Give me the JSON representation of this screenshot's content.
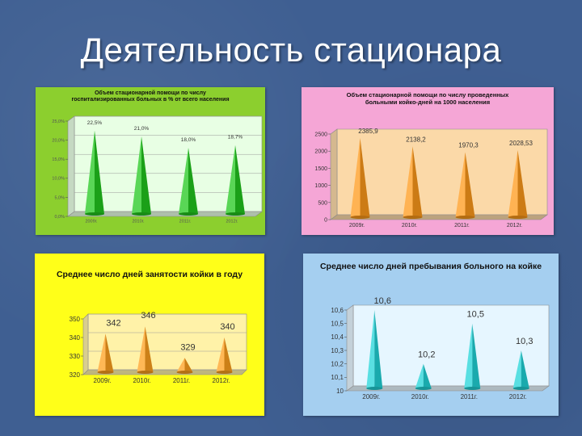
{
  "slide": {
    "title": "Деятельность стационара"
  },
  "chart_data": [
    {
      "type": "bar",
      "title": "Объем стационарной помощи по числу госпитализированных больных в % от всего населения",
      "categories": [
        "2009г.",
        "2010г.",
        "2011г.",
        "2012г."
      ],
      "values": [
        22.5,
        21.0,
        18.0,
        18.7
      ],
      "data_labels": [
        "22,5%",
        "21,0%",
        "18,0%",
        "18,7%"
      ],
      "yticks": [
        "0,0%",
        "5,0%",
        "10,0%",
        "15,0%",
        "20,0%",
        "25,0%"
      ],
      "ylim": [
        0,
        25
      ],
      "grid": true,
      "colors": {
        "background": "#8ccf2e",
        "plot": "#e8ffe4",
        "mark": "#22c81e"
      }
    },
    {
      "type": "bar",
      "title": "Объем стационарной помощи по числу проведенных больными койко-дней на 1000 населения",
      "categories": [
        "2009г.",
        "2010г.",
        "2011г.",
        "2012г."
      ],
      "values": [
        2385.9,
        2138.2,
        1970.3,
        2028.53
      ],
      "data_labels": [
        "2385,9",
        "2138,2",
        "1970,3",
        "2028,53"
      ],
      "yticks": [
        "0",
        "500",
        "1000",
        "1500",
        "2000",
        "2500"
      ],
      "ylim": [
        0,
        2500
      ],
      "grid": false,
      "colors": {
        "background": "#f5a6d6",
        "plot": "#fbd9a8",
        "mark": "#ff9a1a"
      }
    },
    {
      "type": "bar",
      "title": "Среднее число дней занятости койки в году",
      "categories": [
        "2009г.",
        "2010г.",
        "2011г.",
        "2012г."
      ],
      "values": [
        342,
        346,
        329,
        340
      ],
      "data_labels": [
        "342",
        "346",
        "329",
        "340"
      ],
      "yticks": [
        "320",
        "330",
        "340",
        "350"
      ],
      "ylim": [
        320,
        350
      ],
      "grid": true,
      "colors": {
        "background": "#ffff19",
        "plot": "#fff2a8",
        "mark": "#ffa01e"
      }
    },
    {
      "type": "bar",
      "title": "Среднее число дней пребывания больного на койке",
      "categories": [
        "2009г.",
        "2010г.",
        "2011г.",
        "2012г."
      ],
      "values": [
        10.6,
        10.2,
        10.5,
        10.3
      ],
      "data_labels": [
        "10,6",
        "10,2",
        "10,5",
        "10,3"
      ],
      "yticks": [
        "10",
        "10,1",
        "10,2",
        "10,3",
        "10,4",
        "10,5",
        "10,6"
      ],
      "ylim": [
        10,
        10.6
      ],
      "grid": false,
      "colors": {
        "background": "#a5cff0",
        "plot": "#e6f6ff",
        "mark": "#21d4d8"
      }
    }
  ]
}
